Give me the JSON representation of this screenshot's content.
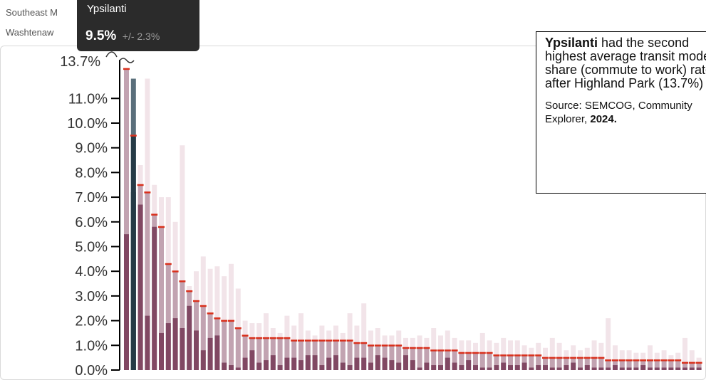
{
  "legend": {
    "line1": "Southeast M",
    "line1_tail": "%",
    "line2": "Washtenaw"
  },
  "tooltip": {
    "name": "Ypsilanti",
    "value": "9.5%",
    "moe": "+/- 2.3%"
  },
  "annotation": {
    "place": "Ypsilanti",
    "text": "had the second highest average transit mode share (commute to work) rate after Highland Park",
    "value": "(13.7%)",
    "source_prefix": "Source: SEMCOG, Community Explorer,",
    "source_year": "2024."
  },
  "colors": {
    "bar_dark": "#6b2a4a",
    "bar_light": "#f2e4e9",
    "highlight": "#263b47",
    "highlight_light": "#5a6f7b",
    "mean_line": "#d9301c",
    "axis": "#000000"
  },
  "chart_data": {
    "type": "bar",
    "y_axis": {
      "ticks": [
        "0.0%",
        "1.0%",
        "2.0%",
        "3.0%",
        "4.0%",
        "5.0%",
        "6.0%",
        "7.0%",
        "8.0%",
        "9.0%",
        "10.0%",
        "11.0%"
      ],
      "max_label": "13.7%",
      "ylim": [
        0,
        12.2
      ]
    },
    "highlighted_index": 1,
    "series": [
      {
        "name": "estimate",
        "values": [
          12.2,
          9.5,
          7.5,
          7.2,
          6.3,
          5.8,
          4.3,
          4.0,
          3.6,
          3.2,
          2.8,
          2.6,
          2.3,
          2.1,
          2.0,
          2.0,
          1.7,
          1.4,
          1.3,
          1.3,
          1.3,
          1.3,
          1.3,
          1.3,
          1.2,
          1.2,
          1.2,
          1.2,
          1.2,
          1.2,
          1.2,
          1.2,
          1.2,
          1.1,
          1.1,
          1.0,
          1.0,
          1.0,
          1.0,
          1.0,
          0.9,
          0.9,
          0.9,
          0.9,
          0.8,
          0.8,
          0.8,
          0.8,
          0.7,
          0.7,
          0.7,
          0.7,
          0.7,
          0.6,
          0.6,
          0.6,
          0.6,
          0.6,
          0.6,
          0.6,
          0.5,
          0.5,
          0.5,
          0.5,
          0.5,
          0.5,
          0.5,
          0.5,
          0.5,
          0.4,
          0.4,
          0.4,
          0.4,
          0.4,
          0.4,
          0.4,
          0.4,
          0.4,
          0.4,
          0.4,
          0.3,
          0.3,
          0.3
        ]
      },
      {
        "name": "upper",
        "values": [
          12.2,
          11.8,
          8.3,
          11.8,
          7.5,
          7.0,
          7.0,
          6.0,
          9.1,
          3.4,
          4.0,
          4.6,
          4.1,
          4.2,
          3.8,
          4.3,
          3.3,
          2.0,
          1.9,
          1.9,
          2.3,
          1.7,
          1.5,
          2.2,
          1.8,
          2.3,
          1.6,
          1.4,
          1.8,
          1.6,
          1.8,
          1.5,
          2.3,
          1.8,
          2.7,
          1.6,
          1.7,
          1.4,
          1.4,
          1.6,
          1.3,
          1.3,
          1.4,
          1.3,
          1.7,
          1.4,
          1.6,
          1.3,
          1.2,
          1.2,
          1.1,
          1.5,
          1.2,
          1.1,
          1.3,
          1.2,
          1.2,
          1.0,
          0.9,
          1.1,
          0.9,
          1.3,
          1.1,
          0.8,
          1.0,
          0.8,
          0.9,
          1.2,
          1.1,
          2.1,
          1.0,
          0.8,
          0.8,
          0.7,
          0.7,
          1.0,
          0.7,
          0.8,
          0.6,
          0.7,
          1.3,
          0.8,
          0.5
        ]
      },
      {
        "name": "lower",
        "values": [
          5.5,
          7.2,
          6.7,
          2.2,
          5.8,
          1.5,
          1.9,
          2.1,
          1.7,
          2.6,
          1.6,
          0.8,
          1.3,
          1.4,
          0.3,
          0.2,
          0.1,
          0.5,
          0.8,
          0.3,
          0.4,
          0.6,
          0.2,
          0.5,
          0.5,
          0.4,
          0.6,
          0.6,
          0.2,
          0.5,
          0.6,
          0.3,
          0.2,
          0.5,
          0.5,
          0.3,
          0.6,
          0.5,
          0.4,
          0.3,
          0.6,
          0.4,
          0.1,
          0.3,
          0.2,
          0.2,
          0.5,
          0.3,
          0.2,
          0.4,
          0.2,
          0.1,
          0.1,
          0.2,
          0.3,
          0.2,
          0.2,
          0.3,
          0.1,
          0.2,
          0.2,
          0.1,
          0.1,
          0.2,
          0.3,
          0.1,
          0.2,
          0.1,
          0.1,
          0.1,
          0.2,
          0.1,
          0.1,
          0.1,
          0.2,
          0.1,
          0.1,
          0.1,
          0.1,
          0.1,
          0.1,
          0.1,
          0.1
        ]
      }
    ]
  }
}
